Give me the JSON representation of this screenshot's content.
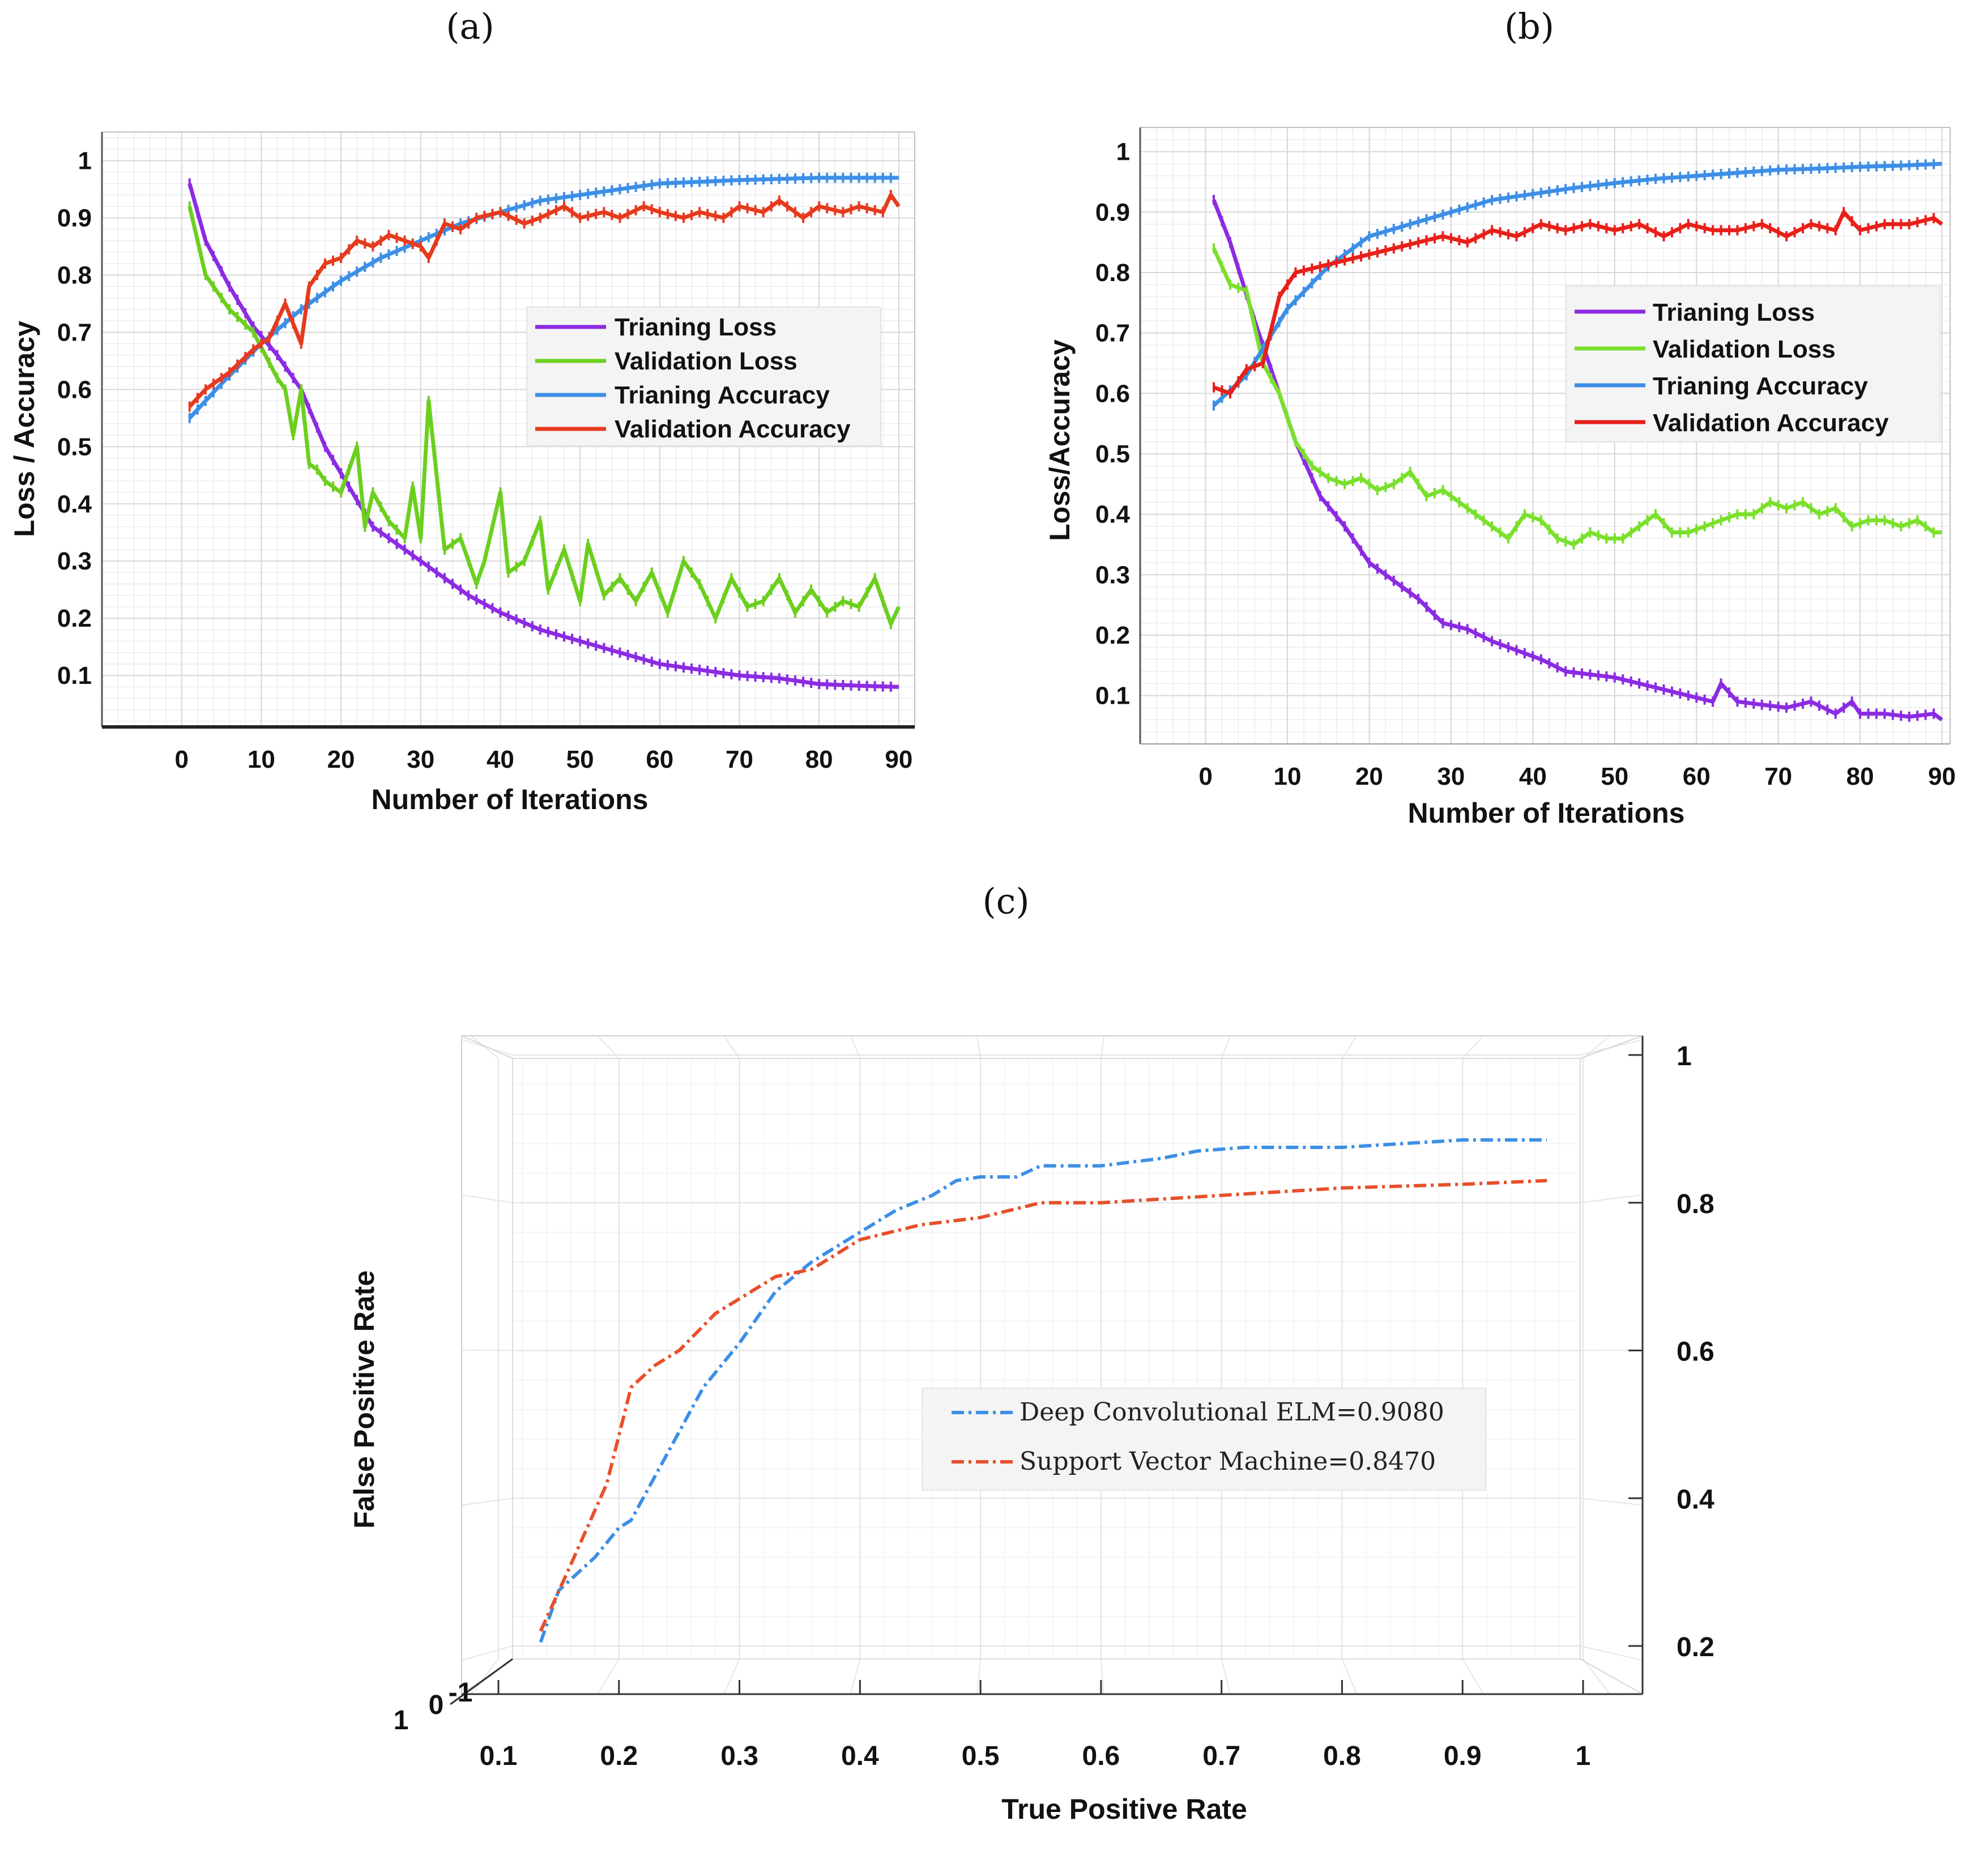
{
  "panels": {
    "a": "(a)",
    "b": "(b)",
    "c": "(c)"
  },
  "chart_data": [
    {
      "type": "line",
      "panel": "(a)",
      "xlabel": "Number of Iterations",
      "ylabel": "Loss / Accuracy",
      "xlim": [
        -10,
        92
      ],
      "ylim": [
        0.01,
        1.05
      ],
      "xticks": [
        0,
        10,
        20,
        30,
        40,
        50,
        60,
        70,
        80,
        90
      ],
      "yticks": [
        0.1,
        0.2,
        0.3,
        0.4,
        0.5,
        0.6,
        0.7,
        0.8,
        0.9,
        1
      ],
      "legend_position": "center-right",
      "series": [
        {
          "name": "Trianing Loss",
          "color": "#8b2be2",
          "x": [
            1,
            3,
            6,
            9,
            12,
            15,
            18,
            21,
            24,
            27,
            30,
            33,
            36,
            40,
            45,
            50,
            55,
            60,
            65,
            70,
            75,
            80,
            85,
            90
          ],
          "y": [
            0.96,
            0.86,
            0.78,
            0.71,
            0.66,
            0.6,
            0.5,
            0.43,
            0.36,
            0.33,
            0.3,
            0.27,
            0.24,
            0.21,
            0.18,
            0.16,
            0.14,
            0.12,
            0.11,
            0.1,
            0.095,
            0.085,
            0.082,
            0.08
          ]
        },
        {
          "name": "Validation Loss",
          "color": "#6ccf1f",
          "x": [
            1,
            3,
            6,
            9,
            12,
            13,
            14,
            15,
            16,
            17,
            18,
            20,
            22,
            23,
            24,
            26,
            28,
            29,
            30,
            31,
            33,
            35,
            37,
            38,
            40,
            41,
            43,
            45,
            46,
            48,
            50,
            51,
            53,
            55,
            57,
            59,
            61,
            63,
            65,
            67,
            69,
            71,
            73,
            75,
            77,
            79,
            81,
            83,
            85,
            87,
            89,
            90
          ],
          "y": [
            0.92,
            0.8,
            0.74,
            0.7,
            0.62,
            0.6,
            0.52,
            0.6,
            0.47,
            0.46,
            0.44,
            0.42,
            0.5,
            0.36,
            0.42,
            0.37,
            0.34,
            0.43,
            0.34,
            0.58,
            0.32,
            0.34,
            0.26,
            0.3,
            0.42,
            0.28,
            0.3,
            0.37,
            0.25,
            0.32,
            0.23,
            0.33,
            0.24,
            0.27,
            0.23,
            0.28,
            0.21,
            0.3,
            0.26,
            0.2,
            0.27,
            0.22,
            0.23,
            0.27,
            0.21,
            0.25,
            0.21,
            0.23,
            0.22,
            0.27,
            0.19,
            0.22
          ]
        },
        {
          "name": "Trianing Accuracy",
          "color": "#3d8fe6",
          "x": [
            1,
            5,
            10,
            15,
            20,
            25,
            30,
            35,
            40,
            45,
            50,
            55,
            60,
            65,
            70,
            75,
            80,
            85,
            90
          ],
          "y": [
            0.55,
            0.61,
            0.68,
            0.74,
            0.79,
            0.83,
            0.86,
            0.89,
            0.91,
            0.93,
            0.94,
            0.95,
            0.96,
            0.963,
            0.966,
            0.968,
            0.97,
            0.97,
            0.97
          ]
        },
        {
          "name": "Validation Accuracy",
          "color": "#e63a1e",
          "x": [
            1,
            3,
            6,
            9,
            11,
            13,
            15,
            16,
            18,
            20,
            22,
            24,
            26,
            28,
            30,
            31,
            33,
            35,
            37,
            40,
            43,
            45,
            48,
            50,
            53,
            55,
            58,
            60,
            63,
            65,
            68,
            70,
            73,
            75,
            78,
            80,
            83,
            85,
            88,
            89,
            90
          ],
          "y": [
            0.57,
            0.6,
            0.63,
            0.67,
            0.69,
            0.75,
            0.68,
            0.78,
            0.82,
            0.83,
            0.86,
            0.85,
            0.87,
            0.86,
            0.85,
            0.83,
            0.89,
            0.88,
            0.9,
            0.91,
            0.89,
            0.9,
            0.92,
            0.9,
            0.91,
            0.9,
            0.92,
            0.91,
            0.9,
            0.91,
            0.9,
            0.92,
            0.91,
            0.93,
            0.9,
            0.92,
            0.91,
            0.92,
            0.91,
            0.94,
            0.92
          ]
        }
      ]
    },
    {
      "type": "line",
      "panel": "(b)",
      "xlabel": "Number of Iterations",
      "ylabel": "Loss/Accuracy",
      "xlim": [
        -8,
        91
      ],
      "ylim": [
        0.02,
        1.04
      ],
      "xticks": [
        0,
        10,
        20,
        30,
        40,
        50,
        60,
        70,
        80,
        90
      ],
      "yticks": [
        0.1,
        0.2,
        0.3,
        0.4,
        0.5,
        0.6,
        0.7,
        0.8,
        0.9,
        1
      ],
      "legend_position": "center-right",
      "series": [
        {
          "name": "Trianing Loss",
          "color": "#8b2be2",
          "x": [
            1,
            3,
            6,
            9,
            11,
            14,
            17,
            20,
            23,
            26,
            29,
            32,
            35,
            38,
            41,
            44,
            47,
            50,
            53,
            56,
            59,
            62,
            63,
            65,
            68,
            71,
            74,
            77,
            79,
            80,
            83,
            86,
            89,
            90
          ],
          "y": [
            0.92,
            0.85,
            0.72,
            0.6,
            0.52,
            0.43,
            0.38,
            0.32,
            0.29,
            0.26,
            0.22,
            0.21,
            0.19,
            0.175,
            0.16,
            0.14,
            0.135,
            0.13,
            0.12,
            0.11,
            0.1,
            0.09,
            0.12,
            0.09,
            0.085,
            0.08,
            0.09,
            0.07,
            0.09,
            0.07,
            0.07,
            0.065,
            0.07,
            0.06
          ]
        },
        {
          "name": "Validation Loss",
          "color": "#7be02c",
          "x": [
            1,
            3,
            5,
            7,
            9,
            11,
            13,
            15,
            17,
            19,
            21,
            23,
            25,
            27,
            29,
            31,
            33,
            35,
            37,
            39,
            41,
            43,
            45,
            47,
            49,
            51,
            53,
            55,
            57,
            59,
            61,
            63,
            65,
            67,
            69,
            71,
            73,
            75,
            77,
            79,
            81,
            83,
            85,
            87,
            89,
            90
          ],
          "y": [
            0.84,
            0.78,
            0.77,
            0.65,
            0.6,
            0.52,
            0.48,
            0.46,
            0.45,
            0.46,
            0.44,
            0.45,
            0.47,
            0.43,
            0.44,
            0.42,
            0.4,
            0.38,
            0.36,
            0.4,
            0.39,
            0.36,
            0.35,
            0.37,
            0.36,
            0.36,
            0.38,
            0.4,
            0.37,
            0.37,
            0.38,
            0.39,
            0.4,
            0.4,
            0.42,
            0.41,
            0.42,
            0.4,
            0.41,
            0.38,
            0.39,
            0.39,
            0.38,
            0.39,
            0.37,
            0.37
          ]
        },
        {
          "name": "Trianing Accuracy",
          "color": "#3d8fe6",
          "x": [
            1,
            5,
            10,
            15,
            20,
            25,
            30,
            35,
            40,
            45,
            50,
            55,
            60,
            65,
            70,
            75,
            80,
            85,
            90
          ],
          "y": [
            0.58,
            0.63,
            0.74,
            0.81,
            0.86,
            0.88,
            0.9,
            0.92,
            0.93,
            0.94,
            0.948,
            0.955,
            0.96,
            0.965,
            0.97,
            0.972,
            0.975,
            0.977,
            0.98
          ]
        },
        {
          "name": "Validation Accuracy",
          "color": "#e8201a",
          "x": [
            1,
            3,
            5,
            7,
            9,
            11,
            14,
            17,
            20,
            23,
            26,
            29,
            32,
            35,
            38,
            41,
            44,
            47,
            50,
            53,
            56,
            59,
            62,
            65,
            68,
            71,
            74,
            77,
            78,
            80,
            83,
            86,
            89,
            90
          ],
          "y": [
            0.61,
            0.6,
            0.64,
            0.65,
            0.76,
            0.8,
            0.81,
            0.82,
            0.83,
            0.84,
            0.85,
            0.86,
            0.85,
            0.87,
            0.86,
            0.88,
            0.87,
            0.88,
            0.87,
            0.88,
            0.86,
            0.88,
            0.87,
            0.87,
            0.88,
            0.86,
            0.88,
            0.87,
            0.9,
            0.87,
            0.88,
            0.88,
            0.89,
            0.88
          ]
        }
      ]
    },
    {
      "type": "line",
      "panel": "(c)",
      "xlabel": "True Positive Rate",
      "ylabel": "False Positive Rate",
      "xlim": [
        0.06,
        1.05
      ],
      "ylim": [
        0.14,
        1.04
      ],
      "xticks": [
        0.1,
        0.2,
        0.3,
        0.4,
        0.5,
        0.6,
        0.7,
        0.8,
        0.9,
        1
      ],
      "yticks": [
        0.2,
        0.4,
        0.6,
        0.8,
        1
      ],
      "yaxis_side": "right",
      "extra_axis_labels": [
        "1",
        "0",
        "-1"
      ],
      "legend_position": "center-right",
      "series": [
        {
          "name": "Deep Convolutional ELM=0.9080",
          "color": "#3d8fe6",
          "x": [
            0.135,
            0.15,
            0.18,
            0.2,
            0.21,
            0.23,
            0.25,
            0.27,
            0.3,
            0.33,
            0.36,
            0.4,
            0.43,
            0.46,
            0.48,
            0.5,
            0.53,
            0.55,
            0.6,
            0.65,
            0.68,
            0.72,
            0.8,
            0.9,
            0.97
          ],
          "y": [
            0.205,
            0.275,
            0.32,
            0.36,
            0.37,
            0.43,
            0.49,
            0.55,
            0.61,
            0.68,
            0.72,
            0.76,
            0.79,
            0.81,
            0.83,
            0.835,
            0.835,
            0.85,
            0.85,
            0.86,
            0.87,
            0.875,
            0.875,
            0.885,
            0.885
          ]
        },
        {
          "name": "Support Vector Machine=0.8470",
          "color": "#e6502b",
          "x": [
            0.135,
            0.16,
            0.19,
            0.21,
            0.23,
            0.25,
            0.28,
            0.3,
            0.33,
            0.36,
            0.4,
            0.45,
            0.5,
            0.55,
            0.6,
            0.7,
            0.8,
            0.9,
            0.97
          ],
          "y": [
            0.22,
            0.31,
            0.42,
            0.55,
            0.58,
            0.6,
            0.65,
            0.67,
            0.7,
            0.71,
            0.75,
            0.77,
            0.78,
            0.8,
            0.8,
            0.81,
            0.82,
            0.825,
            0.83
          ]
        }
      ]
    }
  ]
}
